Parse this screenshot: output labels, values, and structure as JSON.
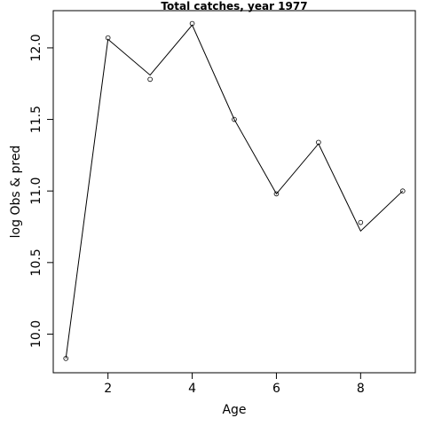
{
  "chart_data": {
    "type": "line",
    "title": "Total catches, year 1977",
    "xlabel": "Age",
    "ylabel": "log Obs & pred",
    "xlim": [
      0.7,
      9.3
    ],
    "ylim": [
      9.73,
      12.26
    ],
    "x_ticks": [
      2,
      4,
      6,
      8
    ],
    "x_tick_labels": [
      "2",
      "4",
      "6",
      "8"
    ],
    "y_ticks": [
      10.0,
      10.5,
      11.0,
      11.5,
      12.0
    ],
    "y_tick_labels": [
      "10.0",
      "10.5",
      "11.0",
      "11.5",
      "12.0"
    ],
    "grid": false,
    "series": [
      {
        "style": "points",
        "x": [
          1,
          2,
          3,
          4,
          5,
          6,
          7,
          8,
          9
        ],
        "y": [
          9.83,
          12.07,
          11.78,
          12.17,
          11.5,
          10.98,
          11.34,
          10.78,
          11.0
        ]
      },
      {
        "style": "line",
        "x": [
          1,
          2,
          3,
          4,
          5,
          6,
          7,
          8,
          9
        ],
        "y": [
          9.83,
          12.06,
          11.81,
          12.16,
          11.5,
          10.98,
          11.33,
          10.72,
          11.0
        ]
      }
    ]
  }
}
